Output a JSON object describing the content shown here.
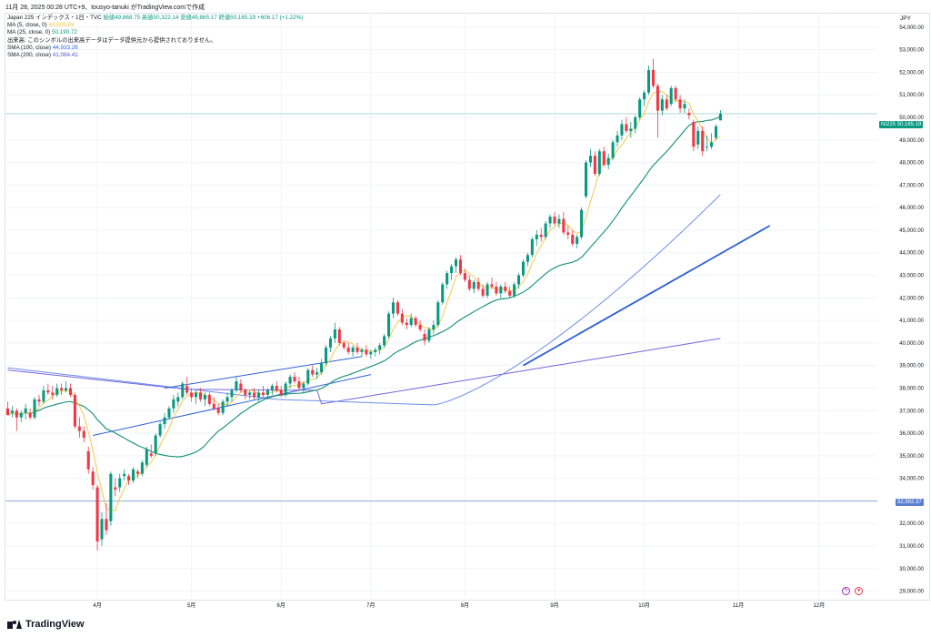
{
  "header": {
    "text": "11月 28, 2025 00:28 UTC+9、tousyo-tanuki がTradingView.comで作成"
  },
  "legend": {
    "title": "Japan 225 インデックス・1日・TVC",
    "ohlc": "始値49,868.75 高値50,322.14 安値49,865.17 終値50,165.19 +606.17 (+1.22%)",
    "volume_note": "出来高: このシンボルの出来高データはデータ提供元から提供されておりません。",
    "ma5_label": "MA (5, close, 0)",
    "ma5_value": "49,609.69",
    "ma25_label": "MA (25, close, 0)",
    "ma25_value": "50,190.72",
    "sma100_label": "SMA (100, close)",
    "sma100_value": "44,933.26",
    "sma200_label": "SMA (200, close)",
    "sma200_value": "41,084.41"
  },
  "currency": "JPY",
  "price_tags": {
    "last_symbol": "NI225",
    "last_value": "50,165.19",
    "hline_value": "32,992.37"
  },
  "brand": "TradingView",
  "colors": {
    "up": "#089981",
    "down": "#f23645",
    "ma5": "#f2c94c",
    "ma25": "#22977a",
    "sma100": "#6e8ee8",
    "sma200": "#7a66d9",
    "trend": "#2f5fd6",
    "grid": "#f0f3fa",
    "hline": "#8fa8d8"
  },
  "chart_data": {
    "type": "candlestick",
    "title": "",
    "x_labels": [
      "4月",
      "5月",
      "6月",
      "7月",
      "8月",
      "9月",
      "10月",
      "11月",
      "12月"
    ],
    "x_label_index": [
      20,
      41,
      61,
      81,
      102,
      122,
      142,
      163,
      181
    ],
    "y_ticks": [
      29000,
      30000,
      31000,
      32000,
      33000,
      34000,
      35000,
      36000,
      37000,
      38000,
      39000,
      40000,
      41000,
      42000,
      43000,
      44000,
      45000,
      46000,
      47000,
      48000,
      49000,
      50000,
      51000,
      52000,
      53000,
      54000
    ],
    "ylim": [
      28700,
      54600
    ],
    "xlim": [
      -0.5,
      194
    ],
    "candles": [
      {
        "o": 37100,
        "h": 37400,
        "l": 36900,
        "c": 36800
      },
      {
        "o": 36900,
        "h": 37200,
        "l": 36700,
        "c": 37000
      },
      {
        "o": 37000,
        "h": 37100,
        "l": 36100,
        "c": 36700
      },
      {
        "o": 36700,
        "h": 37000,
        "l": 36500,
        "c": 36900
      },
      {
        "o": 36900,
        "h": 37300,
        "l": 36600,
        "c": 37100
      },
      {
        "o": 36900,
        "h": 37100,
        "l": 36600,
        "c": 36700
      },
      {
        "o": 36700,
        "h": 37600,
        "l": 36600,
        "c": 37500
      },
      {
        "o": 37500,
        "h": 37700,
        "l": 37200,
        "c": 37400
      },
      {
        "o": 37400,
        "h": 38100,
        "l": 37300,
        "c": 37900
      },
      {
        "o": 37900,
        "h": 38200,
        "l": 37700,
        "c": 37800
      },
      {
        "o": 37800,
        "h": 38100,
        "l": 37500,
        "c": 37700
      },
      {
        "o": 37700,
        "h": 38200,
        "l": 37600,
        "c": 38000
      },
      {
        "o": 38000,
        "h": 38200,
        "l": 37700,
        "c": 37900
      },
      {
        "o": 37900,
        "h": 38300,
        "l": 37800,
        "c": 38000
      },
      {
        "o": 38000,
        "h": 38200,
        "l": 37600,
        "c": 37700
      },
      {
        "o": 37700,
        "h": 37800,
        "l": 36200,
        "c": 36300
      },
      {
        "o": 36300,
        "h": 36700,
        "l": 35800,
        "c": 36100
      },
      {
        "o": 36100,
        "h": 36300,
        "l": 35600,
        "c": 35800
      },
      {
        "o": 35200,
        "h": 35400,
        "l": 34200,
        "c": 34400
      },
      {
        "o": 34300,
        "h": 34500,
        "l": 33500,
        "c": 33700
      },
      {
        "o": 33600,
        "h": 33700,
        "l": 30800,
        "c": 31200
      },
      {
        "o": 31300,
        "h": 32500,
        "l": 31000,
        "c": 32200
      },
      {
        "o": 32200,
        "h": 32900,
        "l": 31500,
        "c": 31700
      },
      {
        "o": 32100,
        "h": 34300,
        "l": 31900,
        "c": 34200
      },
      {
        "o": 33600,
        "h": 34000,
        "l": 33200,
        "c": 33500
      },
      {
        "o": 33600,
        "h": 34200,
        "l": 33400,
        "c": 34000
      },
      {
        "o": 34100,
        "h": 34400,
        "l": 33900,
        "c": 34200
      },
      {
        "o": 34100,
        "h": 34200,
        "l": 33700,
        "c": 33900
      },
      {
        "o": 33900,
        "h": 34500,
        "l": 33800,
        "c": 34400
      },
      {
        "o": 34300,
        "h": 34400,
        "l": 34000,
        "c": 34200
      },
      {
        "o": 34200,
        "h": 34800,
        "l": 34100,
        "c": 34700
      },
      {
        "o": 34600,
        "h": 35400,
        "l": 34500,
        "c": 35300
      },
      {
        "o": 35100,
        "h": 35500,
        "l": 34900,
        "c": 35000
      },
      {
        "o": 35100,
        "h": 36000,
        "l": 35000,
        "c": 35900
      },
      {
        "o": 35900,
        "h": 36500,
        "l": 35800,
        "c": 36400
      },
      {
        "o": 36400,
        "h": 36900,
        "l": 36200,
        "c": 36700
      },
      {
        "o": 36700,
        "h": 37200,
        "l": 36600,
        "c": 37100
      },
      {
        "o": 37100,
        "h": 37700,
        "l": 36900,
        "c": 37500
      },
      {
        "o": 37400,
        "h": 37800,
        "l": 37200,
        "c": 37600
      },
      {
        "o": 37600,
        "h": 38300,
        "l": 37500,
        "c": 38200
      },
      {
        "o": 38100,
        "h": 38500,
        "l": 37700,
        "c": 37800
      },
      {
        "o": 37800,
        "h": 38000,
        "l": 37400,
        "c": 37600
      },
      {
        "o": 37600,
        "h": 37900,
        "l": 37300,
        "c": 37800
      },
      {
        "o": 37800,
        "h": 38000,
        "l": 37400,
        "c": 37500
      },
      {
        "o": 37500,
        "h": 37800,
        "l": 37200,
        "c": 37700
      },
      {
        "o": 37700,
        "h": 37800,
        "l": 37200,
        "c": 37300
      },
      {
        "o": 37300,
        "h": 37600,
        "l": 37000,
        "c": 37100
      },
      {
        "o": 37100,
        "h": 37300,
        "l": 36800,
        "c": 36900
      },
      {
        "o": 36900,
        "h": 37500,
        "l": 36800,
        "c": 37400
      },
      {
        "o": 37400,
        "h": 37800,
        "l": 37200,
        "c": 37600
      },
      {
        "o": 37600,
        "h": 38000,
        "l": 37400,
        "c": 37900
      },
      {
        "o": 37900,
        "h": 38500,
        "l": 37800,
        "c": 38300
      },
      {
        "o": 38200,
        "h": 38400,
        "l": 37800,
        "c": 37900
      },
      {
        "o": 37900,
        "h": 38000,
        "l": 37500,
        "c": 37700
      },
      {
        "o": 37700,
        "h": 37900,
        "l": 37500,
        "c": 37800
      },
      {
        "o": 37800,
        "h": 38000,
        "l": 37500,
        "c": 37600
      },
      {
        "o": 37600,
        "h": 37900,
        "l": 37400,
        "c": 37800
      },
      {
        "o": 37800,
        "h": 38100,
        "l": 37600,
        "c": 37700
      },
      {
        "o": 37700,
        "h": 38000,
        "l": 37500,
        "c": 37900
      },
      {
        "o": 37900,
        "h": 38200,
        "l": 37700,
        "c": 38100
      },
      {
        "o": 38100,
        "h": 38300,
        "l": 37800,
        "c": 37900
      },
      {
        "o": 37900,
        "h": 38100,
        "l": 37600,
        "c": 37700
      },
      {
        "o": 37700,
        "h": 38300,
        "l": 37600,
        "c": 38200
      },
      {
        "o": 38200,
        "h": 38600,
        "l": 38000,
        "c": 38500
      },
      {
        "o": 38500,
        "h": 38700,
        "l": 38200,
        "c": 38300
      },
      {
        "o": 38300,
        "h": 38500,
        "l": 37900,
        "c": 38000
      },
      {
        "o": 38000,
        "h": 38300,
        "l": 37800,
        "c": 38200
      },
      {
        "o": 38200,
        "h": 38900,
        "l": 38100,
        "c": 38800
      },
      {
        "o": 38800,
        "h": 39000,
        "l": 38500,
        "c": 38600
      },
      {
        "o": 38600,
        "h": 38900,
        "l": 38400,
        "c": 38700
      },
      {
        "o": 38700,
        "h": 39300,
        "l": 38600,
        "c": 39100
      },
      {
        "o": 39100,
        "h": 39900,
        "l": 39000,
        "c": 39800
      },
      {
        "o": 39800,
        "h": 40300,
        "l": 39600,
        "c": 40200
      },
      {
        "o": 40200,
        "h": 40900,
        "l": 40000,
        "c": 40600
      },
      {
        "o": 40600,
        "h": 40700,
        "l": 39900,
        "c": 40000
      },
      {
        "o": 40000,
        "h": 40100,
        "l": 39700,
        "c": 39800
      },
      {
        "o": 39800,
        "h": 40000,
        "l": 39500,
        "c": 39600
      },
      {
        "o": 39600,
        "h": 39900,
        "l": 39400,
        "c": 39800
      },
      {
        "o": 39800,
        "h": 40000,
        "l": 39500,
        "c": 39600
      },
      {
        "o": 39600,
        "h": 39800,
        "l": 39400,
        "c": 39700
      },
      {
        "o": 39700,
        "h": 39900,
        "l": 39400,
        "c": 39500
      },
      {
        "o": 39500,
        "h": 39700,
        "l": 39300,
        "c": 39600
      },
      {
        "o": 39600,
        "h": 39800,
        "l": 39400,
        "c": 39700
      },
      {
        "o": 39700,
        "h": 40000,
        "l": 39500,
        "c": 39900
      },
      {
        "o": 39900,
        "h": 40400,
        "l": 39800,
        "c": 40300
      },
      {
        "o": 40300,
        "h": 41400,
        "l": 40200,
        "c": 41300
      },
      {
        "o": 41300,
        "h": 42000,
        "l": 41100,
        "c": 41800
      },
      {
        "o": 41800,
        "h": 41900,
        "l": 41200,
        "c": 41300
      },
      {
        "o": 41300,
        "h": 41500,
        "l": 40800,
        "c": 40900
      },
      {
        "o": 40900,
        "h": 41100,
        "l": 40600,
        "c": 40800
      },
      {
        "o": 40800,
        "h": 41300,
        "l": 40700,
        "c": 41100
      },
      {
        "o": 41100,
        "h": 41200,
        "l": 40700,
        "c": 40800
      },
      {
        "o": 40800,
        "h": 41000,
        "l": 40500,
        "c": 40600
      },
      {
        "o": 40400,
        "h": 40600,
        "l": 39900,
        "c": 40100
      },
      {
        "o": 40100,
        "h": 40700,
        "l": 40000,
        "c": 40600
      },
      {
        "o": 40600,
        "h": 41000,
        "l": 40400,
        "c": 40800
      },
      {
        "o": 40800,
        "h": 41900,
        "l": 40700,
        "c": 41800
      },
      {
        "o": 41800,
        "h": 42700,
        "l": 41700,
        "c": 42600
      },
      {
        "o": 42600,
        "h": 43200,
        "l": 42400,
        "c": 43100
      },
      {
        "o": 43100,
        "h": 43500,
        "l": 42800,
        "c": 43400
      },
      {
        "o": 43400,
        "h": 43800,
        "l": 43100,
        "c": 43700
      },
      {
        "o": 43700,
        "h": 43900,
        "l": 43000,
        "c": 43100
      },
      {
        "o": 43100,
        "h": 43300,
        "l": 42700,
        "c": 42800
      },
      {
        "o": 42800,
        "h": 43000,
        "l": 42300,
        "c": 42400
      },
      {
        "o": 42400,
        "h": 42800,
        "l": 42200,
        "c": 42700
      },
      {
        "o": 42700,
        "h": 42900,
        "l": 42300,
        "c": 42400
      },
      {
        "o": 42400,
        "h": 42600,
        "l": 42000,
        "c": 42100
      },
      {
        "o": 42100,
        "h": 42700,
        "l": 42000,
        "c": 42600
      },
      {
        "o": 42600,
        "h": 42900,
        "l": 42400,
        "c": 42500
      },
      {
        "o": 42500,
        "h": 42700,
        "l": 42100,
        "c": 42200
      },
      {
        "o": 42200,
        "h": 42600,
        "l": 42000,
        "c": 42500
      },
      {
        "o": 42500,
        "h": 42700,
        "l": 42200,
        "c": 42300
      },
      {
        "o": 42300,
        "h": 42500,
        "l": 42000,
        "c": 42100
      },
      {
        "o": 42100,
        "h": 42700,
        "l": 42000,
        "c": 42600
      },
      {
        "o": 42600,
        "h": 43100,
        "l": 42400,
        "c": 43000
      },
      {
        "o": 43000,
        "h": 43700,
        "l": 42900,
        "c": 43600
      },
      {
        "o": 43600,
        "h": 44000,
        "l": 43400,
        "c": 43900
      },
      {
        "o": 43900,
        "h": 44700,
        "l": 43800,
        "c": 44600
      },
      {
        "o": 44600,
        "h": 45000,
        "l": 44300,
        "c": 44800
      },
      {
        "o": 44800,
        "h": 45100,
        "l": 44500,
        "c": 44700
      },
      {
        "o": 44700,
        "h": 45400,
        "l": 44600,
        "c": 45300
      },
      {
        "o": 45300,
        "h": 45700,
        "l": 45100,
        "c": 45600
      },
      {
        "o": 45600,
        "h": 45800,
        "l": 45200,
        "c": 45300
      },
      {
        "o": 45300,
        "h": 45700,
        "l": 45100,
        "c": 45500
      },
      {
        "o": 45500,
        "h": 45800,
        "l": 44800,
        "c": 44900
      },
      {
        "o": 44900,
        "h": 45200,
        "l": 44600,
        "c": 44800
      },
      {
        "o": 44800,
        "h": 45000,
        "l": 44300,
        "c": 44400
      },
      {
        "o": 44400,
        "h": 44800,
        "l": 44200,
        "c": 44700
      },
      {
        "o": 44700,
        "h": 46000,
        "l": 44600,
        "c": 45900
      },
      {
        "o": 46500,
        "h": 48100,
        "l": 46400,
        "c": 48000
      },
      {
        "o": 48000,
        "h": 48600,
        "l": 47800,
        "c": 48300
      },
      {
        "o": 48300,
        "h": 48500,
        "l": 47400,
        "c": 47500
      },
      {
        "o": 47500,
        "h": 48600,
        "l": 47400,
        "c": 48500
      },
      {
        "o": 48500,
        "h": 48700,
        "l": 47800,
        "c": 47900
      },
      {
        "o": 47900,
        "h": 48400,
        "l": 47700,
        "c": 48200
      },
      {
        "o": 48200,
        "h": 49000,
        "l": 48100,
        "c": 48900
      },
      {
        "o": 48900,
        "h": 49400,
        "l": 48700,
        "c": 49200
      },
      {
        "o": 49200,
        "h": 49900,
        "l": 49000,
        "c": 49700
      },
      {
        "o": 49700,
        "h": 50000,
        "l": 49300,
        "c": 49400
      },
      {
        "o": 49400,
        "h": 49800,
        "l": 49100,
        "c": 49500
      },
      {
        "o": 49500,
        "h": 50100,
        "l": 49300,
        "c": 50000
      },
      {
        "o": 50000,
        "h": 50900,
        "l": 49900,
        "c": 50800
      },
      {
        "o": 50800,
        "h": 51200,
        "l": 50500,
        "c": 51100
      },
      {
        "o": 51100,
        "h": 52300,
        "l": 51000,
        "c": 52100
      },
      {
        "o": 52100,
        "h": 52600,
        "l": 51300,
        "c": 51400
      },
      {
        "o": 51400,
        "h": 51500,
        "l": 49100,
        "c": 50300
      },
      {
        "o": 50300,
        "h": 51000,
        "l": 50100,
        "c": 50800
      },
      {
        "o": 50800,
        "h": 51000,
        "l": 50300,
        "c": 50400
      },
      {
        "o": 50600,
        "h": 51400,
        "l": 50500,
        "c": 51300
      },
      {
        "o": 51300,
        "h": 51400,
        "l": 50700,
        "c": 50800
      },
      {
        "o": 50800,
        "h": 51000,
        "l": 50200,
        "c": 50400
      },
      {
        "o": 50400,
        "h": 50800,
        "l": 50200,
        "c": 50600
      },
      {
        "o": 50200,
        "h": 50400,
        "l": 49900,
        "c": 50100
      },
      {
        "o": 49800,
        "h": 49900,
        "l": 48500,
        "c": 48700
      },
      {
        "o": 48800,
        "h": 49600,
        "l": 48600,
        "c": 49400
      },
      {
        "o": 49400,
        "h": 49600,
        "l": 48300,
        "c": 48500
      },
      {
        "o": 48700,
        "h": 49200,
        "l": 48500,
        "c": 48700
      },
      {
        "o": 48700,
        "h": 49300,
        "l": 48600,
        "c": 48900
      },
      {
        "o": 49100,
        "h": 49700,
        "l": 49000,
        "c": 49600
      },
      {
        "o": 49870,
        "h": 50322,
        "l": 49865,
        "c": 50165
      }
    ],
    "hline": 32992.37,
    "trendlines": [
      {
        "x1": 115,
        "y1": 39000,
        "x2": 170,
        "y2": 45200
      },
      {
        "x1": 19,
        "y1": 35900,
        "x2": 81,
        "y2": 38600
      },
      {
        "x1": 35,
        "y1": 38000,
        "x2": 79,
        "y2": 39400
      }
    ]
  }
}
